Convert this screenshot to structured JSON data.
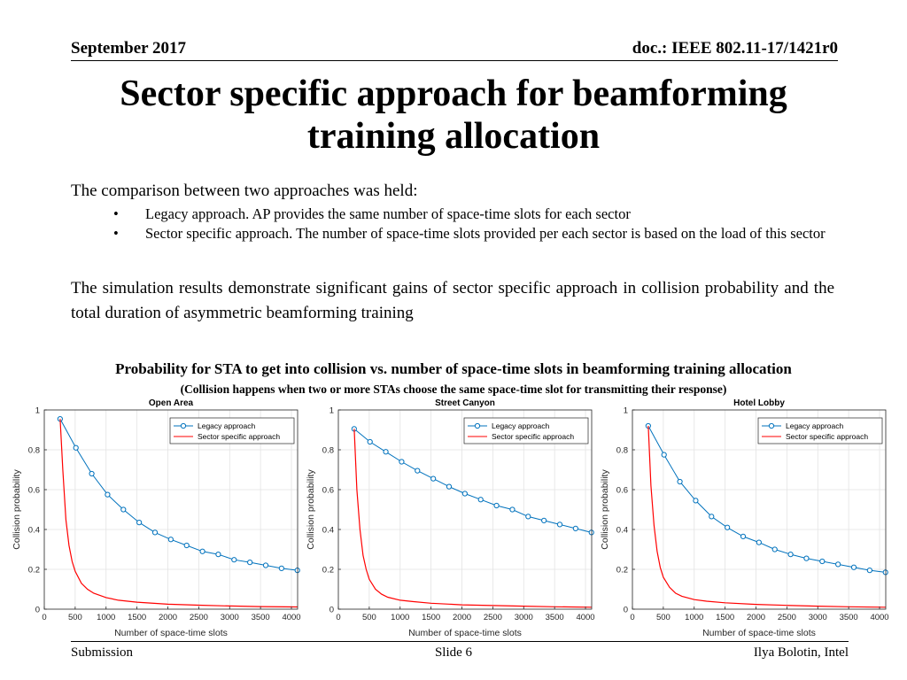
{
  "header": {
    "date": "September 2017",
    "doc": "doc.: IEEE 802.11-17/1421r0"
  },
  "title_line1": "Sector specific approach for beamforming",
  "title_line2": "training allocation",
  "intro": "The comparison between two approaches was held:",
  "bullets": [
    "Legacy approach. AP provides the same number of space-time slots for each sector",
    "Sector specific approach. The number of space-time slots provided per each sector is based on the load of this sector"
  ],
  "results": "The simulation results demonstrate significant gains of sector specific approach in collision probability and the total duration of asymmetric beamforming training",
  "figure_caption": "Probability for STA to get into collision vs. number of space-time slots in beamforming training allocation",
  "figure_subcaption": "(Collision happens when two or more STAs choose the same space-time slot for transmitting their response)",
  "footer": {
    "left": "Submission",
    "center": "Slide 6",
    "right": "Ilya Bolotin, Intel"
  },
  "colors": {
    "legacy": "#0072BD",
    "sector": "#FF0000"
  },
  "chart_data": [
    {
      "type": "line",
      "title": "Open Area",
      "xlabel": "Number of space-time slots",
      "ylabel": "Collision probability",
      "xlim": [
        0,
        4100
      ],
      "ylim": [
        0,
        1
      ],
      "xticks": [
        0,
        500,
        1000,
        1500,
        2000,
        2500,
        3000,
        3500,
        4000
      ],
      "yticks": [
        0,
        0.2,
        0.4,
        0.6,
        0.8,
        1
      ],
      "grid": true,
      "legend": "top-right",
      "series": [
        {
          "name": "Legacy approach",
          "marker": "circle",
          "x": [
            256,
            512,
            768,
            1024,
            1280,
            1536,
            1792,
            2048,
            2304,
            2560,
            2816,
            3072,
            3328,
            3584,
            3840,
            4096
          ],
          "y": [
            0.955,
            0.81,
            0.68,
            0.575,
            0.5,
            0.435,
            0.385,
            0.35,
            0.32,
            0.29,
            0.275,
            0.248,
            0.235,
            0.22,
            0.205,
            0.195
          ]
        },
        {
          "name": "Sector specific approach",
          "marker": "none",
          "x": [
            256,
            300,
            350,
            400,
            450,
            500,
            600,
            700,
            800,
            1000,
            1200,
            1500,
            2000,
            2500,
            3000,
            3500,
            4100
          ],
          "y": [
            0.955,
            0.7,
            0.45,
            0.32,
            0.24,
            0.19,
            0.13,
            0.1,
            0.08,
            0.058,
            0.045,
            0.035,
            0.025,
            0.02,
            0.016,
            0.013,
            0.011
          ]
        }
      ]
    },
    {
      "type": "line",
      "title": "Street Canyon",
      "xlabel": "Number of space-time slots",
      "ylabel": "Collision probability",
      "xlim": [
        0,
        4100
      ],
      "ylim": [
        0,
        1
      ],
      "xticks": [
        0,
        500,
        1000,
        1500,
        2000,
        2500,
        3000,
        3500,
        4000
      ],
      "yticks": [
        0,
        0.2,
        0.4,
        0.6,
        0.8,
        1
      ],
      "grid": true,
      "legend": "top-right",
      "series": [
        {
          "name": "Legacy approach",
          "marker": "circle",
          "x": [
            256,
            512,
            768,
            1024,
            1280,
            1536,
            1792,
            2048,
            2304,
            2560,
            2816,
            3072,
            3328,
            3584,
            3840,
            4096
          ],
          "y": [
            0.905,
            0.84,
            0.79,
            0.74,
            0.695,
            0.655,
            0.615,
            0.58,
            0.55,
            0.52,
            0.5,
            0.465,
            0.445,
            0.425,
            0.405,
            0.385
          ]
        },
        {
          "name": "Sector specific approach",
          "marker": "none",
          "x": [
            256,
            300,
            350,
            400,
            450,
            500,
            600,
            700,
            800,
            1000,
            1200,
            1500,
            2000,
            2500,
            3000,
            3500,
            4100
          ],
          "y": [
            0.905,
            0.6,
            0.4,
            0.27,
            0.2,
            0.15,
            0.1,
            0.075,
            0.06,
            0.045,
            0.038,
            0.03,
            0.022,
            0.018,
            0.015,
            0.012,
            0.01
          ]
        }
      ]
    },
    {
      "type": "line",
      "title": "Hotel Lobby",
      "xlabel": "Number of space-time slots",
      "ylabel": "Collision probability",
      "xlim": [
        0,
        4100
      ],
      "ylim": [
        0,
        1
      ],
      "xticks": [
        0,
        500,
        1000,
        1500,
        2000,
        2500,
        3000,
        3500,
        4000
      ],
      "yticks": [
        0,
        0.2,
        0.4,
        0.6,
        0.8,
        1
      ],
      "grid": true,
      "legend": "top-right",
      "series": [
        {
          "name": "Legacy approach",
          "marker": "circle",
          "x": [
            256,
            512,
            768,
            1024,
            1280,
            1536,
            1792,
            2048,
            2304,
            2560,
            2816,
            3072,
            3328,
            3584,
            3840,
            4096
          ],
          "y": [
            0.92,
            0.775,
            0.64,
            0.545,
            0.465,
            0.41,
            0.365,
            0.335,
            0.3,
            0.275,
            0.255,
            0.24,
            0.225,
            0.21,
            0.195,
            0.185
          ]
        },
        {
          "name": "Sector specific approach",
          "marker": "none",
          "x": [
            256,
            300,
            350,
            400,
            450,
            500,
            600,
            700,
            800,
            1000,
            1200,
            1500,
            2000,
            2500,
            3000,
            3500,
            4100
          ],
          "y": [
            0.92,
            0.62,
            0.42,
            0.29,
            0.21,
            0.16,
            0.11,
            0.08,
            0.065,
            0.048,
            0.04,
            0.032,
            0.024,
            0.019,
            0.015,
            0.012,
            0.01
          ]
        }
      ]
    }
  ]
}
